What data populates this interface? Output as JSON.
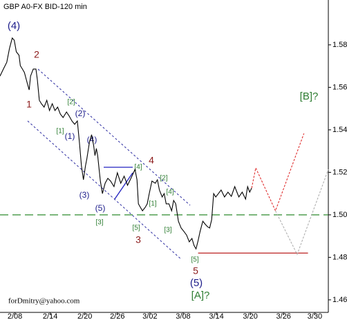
{
  "chart_data": {
    "type": "line",
    "title": "GBP A0-FX BID-120 min",
    "xlim": [
      -2.2,
      46.2
    ],
    "xticks": [
      {
        "value": 0,
        "label": "2/08"
      },
      {
        "value": 5.2,
        "label": "2/14"
      },
      {
        "value": 10.3,
        "label": "2/20"
      },
      {
        "value": 15.1,
        "label": "2/26"
      },
      {
        "value": 19.9,
        "label": "3/02"
      },
      {
        "value": 24.8,
        "label": "3/08"
      },
      {
        "value": 29.7,
        "label": "3/14"
      },
      {
        "value": 34.7,
        "label": "3/20"
      },
      {
        "value": 39.6,
        "label": "3/26"
      },
      {
        "value": 44.2,
        "label": "3/30"
      }
    ],
    "ylim": [
      1.4541,
      1.6011
    ],
    "yticks": [
      1.46,
      1.48,
      {
        "value": 1.5,
        "label": "1.50"
      },
      1.52,
      1.54,
      1.56,
      1.58
    ],
    "series": [
      {
        "color": "#000000",
        "dash": false,
        "x": [
          -2.2,
          -1.7,
          -1.2,
          -0.8,
          -0.4,
          -0.1,
          0.2,
          0.6,
          0.8,
          1.1,
          1.4,
          1.8,
          2.1,
          2.3,
          2.7,
          3.1,
          3.3,
          3.6,
          3.9,
          4.3,
          4.7,
          5.1,
          5.5,
          5.9,
          6.3,
          6.7,
          7.1,
          7.6,
          8.0,
          8.4,
          8.8,
          9.2,
          9.5,
          9.8,
          10.1,
          10.4,
          10.6,
          11.0,
          11.3,
          11.6,
          11.8,
          12.0,
          12.2,
          12.6,
          12.9,
          13.3,
          13.7,
          14.1,
          14.6,
          15.1,
          15.6,
          16.1,
          16.6,
          17.1,
          17.7,
          18.0,
          18.2,
          18.5,
          18.8,
          19.2,
          19.5,
          19.8,
          20.2,
          20.7,
          21.0,
          21.3,
          21.7,
          22.0,
          22.3,
          22.7,
          23.1,
          23.4,
          23.7,
          24.1,
          24.5,
          24.9,
          25.3,
          25.7,
          26.1,
          26.4,
          26.7,
          27.0,
          27.3,
          27.7,
          28.1,
          28.4,
          28.7,
          29.0,
          29.3,
          29.6,
          30.0,
          30.4,
          30.9,
          31.4,
          31.9,
          32.4,
          33.0,
          33.5,
          34.0,
          34.3,
          34.6,
          34.9
        ],
        "values": [
          1.5653,
          1.5686,
          1.5718,
          1.5783,
          1.5832,
          1.5822,
          1.5767,
          1.5751,
          1.5702,
          1.5686,
          1.567,
          1.5621,
          1.5588,
          1.5653,
          1.5686,
          1.5686,
          1.5637,
          1.5539,
          1.5523,
          1.5507,
          1.5539,
          1.5491,
          1.5523,
          1.5491,
          1.5507,
          1.5474,
          1.5458,
          1.5484,
          1.5465,
          1.5442,
          1.5426,
          1.5442,
          1.5344,
          1.5231,
          1.5165,
          1.5231,
          1.5263,
          1.5344,
          1.5377,
          1.5328,
          1.5279,
          1.5312,
          1.5279,
          1.5159,
          1.51,
          1.5149,
          1.5172,
          1.5159,
          1.5133,
          1.5198,
          1.5149,
          1.5182,
          1.5139,
          1.5172,
          1.5214,
          1.5165,
          1.5052,
          1.5035,
          1.5019,
          1.5035,
          1.5052,
          1.51,
          1.5159,
          1.5149,
          1.5165,
          1.5117,
          1.5084,
          1.51,
          1.5052,
          1.5052,
          1.5019,
          1.5068,
          1.5052,
          1.497,
          1.4938,
          1.4922,
          1.4905,
          1.4873,
          1.4889,
          1.4856,
          1.484,
          1.4879,
          1.4922,
          1.497,
          1.4954,
          1.4944,
          1.4938,
          1.4977,
          1.51,
          1.5084,
          1.51,
          1.5117,
          1.5084,
          1.5107,
          1.5087,
          1.5133,
          1.5084,
          1.5107,
          1.5074,
          1.5133,
          1.5107,
          1.5126
        ]
      },
      {
        "color": "#e03030",
        "dash": true,
        "x": [
          34.9,
          35.5,
          38.4,
          42.6
        ],
        "values": [
          1.5126,
          1.5221,
          1.5019,
          1.5383
        ]
      },
      {
        "color": "#b0b0b0",
        "dash": true,
        "x": [
          38.4,
          41.6,
          46.2
        ],
        "values": [
          1.5019,
          1.4814,
          1.5214
        ]
      }
    ],
    "levels": [
      {
        "value": 1.5,
        "color": "#2e8b2e",
        "dash": true
      },
      {
        "value": 1.482,
        "color": "#c03030",
        "dash": false,
        "from": 27.0,
        "to": 43.2
      }
    ],
    "annotations": [
      "(4)",
      "2",
      "1",
      "[2]",
      "(2)",
      "[1]",
      "(1)",
      "(4)",
      "(3)",
      "(5)",
      "[3]",
      "[4]",
      "4",
      "[2]",
      "[4]",
      "[1]",
      "[5]",
      "[3]",
      "3",
      "[5]",
      "5",
      "(5)",
      "[A]?",
      "[B]?"
    ],
    "footer": "forDmitry@yahoo.com"
  }
}
